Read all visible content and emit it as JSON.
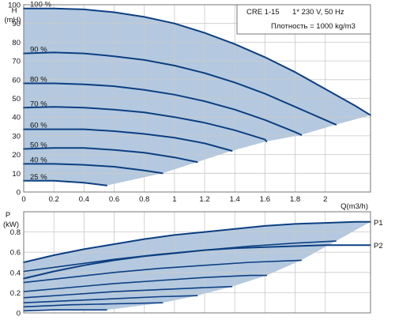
{
  "colors": {
    "curve": "#0c3f82",
    "area": "#b4c9df",
    "grid": "#c9c9c9"
  },
  "chart_data": [
    {
      "type": "line",
      "info": [
        "CRE 1-15",
        "1* 230 V, 50 Hz",
        "Плотность = 1000 kg/m3"
      ],
      "ylabel": [
        "H",
        "(mH)"
      ],
      "xlabel": "Q(m3/h)",
      "xlim": [
        0,
        2.3
      ],
      "ylim": [
        0,
        100
      ],
      "xticks": [
        "0",
        "0.2",
        "0.4",
        "0.6",
        "0.8",
        "1",
        "1.2",
        "1.4",
        "1.6",
        "1.8",
        "2"
      ],
      "yticks": [
        "0",
        "10",
        "20",
        "30",
        "40",
        "50",
        "60",
        "70",
        "80",
        "90",
        "100"
      ],
      "grid": true,
      "series": [
        {
          "name": "100 %",
          "x": [
            0,
            0.2,
            0.4,
            0.6,
            0.8,
            1.0,
            1.2,
            1.4,
            1.6,
            1.8,
            2.0,
            2.2,
            2.3
          ],
          "y": [
            98,
            98,
            97.5,
            96,
            93.5,
            90,
            85,
            79,
            72,
            64,
            55,
            46,
            41
          ]
        },
        {
          "name": "90 %",
          "x": [
            0,
            0.2,
            0.4,
            0.6,
            0.8,
            1.0,
            1.2,
            1.4,
            1.6,
            1.8,
            2.0,
            2.07
          ],
          "y": [
            74,
            74.5,
            74,
            72.5,
            70.5,
            67.5,
            63.5,
            58.5,
            52.5,
            45.5,
            38.5,
            36
          ]
        },
        {
          "name": "80 %",
          "x": [
            0,
            0.2,
            0.4,
            0.6,
            0.8,
            1.0,
            1.2,
            1.4,
            1.6,
            1.8,
            1.84
          ],
          "y": [
            58,
            58,
            57.5,
            56.5,
            54.5,
            52,
            48.5,
            44,
            38.5,
            32,
            30.5
          ]
        },
        {
          "name": "70 %",
          "x": [
            0,
            0.2,
            0.4,
            0.6,
            0.8,
            1.0,
            1.2,
            1.4,
            1.6,
            1.61
          ],
          "y": [
            45,
            45.5,
            45,
            44,
            42.5,
            40,
            37,
            33,
            28,
            27
          ]
        },
        {
          "name": "60 %",
          "x": [
            0,
            0.2,
            0.4,
            0.6,
            0.8,
            1.0,
            1.2,
            1.38
          ],
          "y": [
            33.5,
            33.5,
            33.5,
            32.5,
            31,
            29,
            26,
            22
          ]
        },
        {
          "name": "50 %",
          "x": [
            0,
            0.2,
            0.4,
            0.6,
            0.8,
            1.0,
            1.15
          ],
          "y": [
            23,
            23.5,
            23.5,
            22.5,
            21,
            18.5,
            16
          ]
        },
        {
          "name": "40 %",
          "x": [
            0,
            0.2,
            0.4,
            0.6,
            0.8,
            0.92
          ],
          "y": [
            15,
            15,
            14.5,
            13.5,
            11.5,
            10
          ]
        },
        {
          "name": "25 %",
          "x": [
            0,
            0.2,
            0.4,
            0.55
          ],
          "y": [
            6,
            6,
            5,
            3.5
          ]
        }
      ]
    },
    {
      "type": "line",
      "ylabel": [
        "P",
        "(kW)"
      ],
      "xlim": [
        0,
        2.3
      ],
      "ylim": [
        0,
        1
      ],
      "yticks": [
        "0",
        "0.2",
        "0.4",
        "0.6",
        "0.8"
      ],
      "grid": true,
      "series": [
        {
          "name": "P1",
          "x": [
            0,
            0.2,
            0.4,
            0.6,
            0.8,
            1.0,
            1.2,
            1.4,
            1.6,
            1.8,
            2.0,
            2.2,
            2.3
          ],
          "y": [
            0.5,
            0.57,
            0.63,
            0.68,
            0.73,
            0.77,
            0.8,
            0.83,
            0.86,
            0.88,
            0.89,
            0.9,
            0.9
          ]
        },
        {
          "name": "P2",
          "x": [
            0,
            0.2,
            0.4,
            0.6,
            0.8,
            1.0,
            1.2,
            1.4,
            1.6,
            1.8,
            2.0,
            2.2,
            2.3
          ],
          "y": [
            0.34,
            0.41,
            0.47,
            0.52,
            0.56,
            0.59,
            0.62,
            0.64,
            0.65,
            0.66,
            0.67,
            0.67,
            0.67
          ]
        },
        {
          "x": [
            0,
            0.3,
            0.6,
            0.9,
            1.2,
            1.5,
            1.8,
            2.07
          ],
          "y": [
            0.41,
            0.47,
            0.53,
            0.58,
            0.62,
            0.66,
            0.69,
            0.71
          ]
        },
        {
          "x": [
            0,
            0.3,
            0.6,
            0.9,
            1.2,
            1.5,
            1.84
          ],
          "y": [
            0.3,
            0.35,
            0.4,
            0.44,
            0.47,
            0.5,
            0.52
          ]
        },
        {
          "x": [
            0,
            0.3,
            0.6,
            0.9,
            1.2,
            1.5,
            1.61
          ],
          "y": [
            0.21,
            0.25,
            0.29,
            0.32,
            0.35,
            0.37,
            0.37
          ]
        },
        {
          "x": [
            0,
            0.3,
            0.6,
            0.9,
            1.2,
            1.38
          ],
          "y": [
            0.15,
            0.18,
            0.21,
            0.23,
            0.25,
            0.26
          ]
        },
        {
          "x": [
            0,
            0.3,
            0.6,
            0.9,
            1.15
          ],
          "y": [
            0.1,
            0.12,
            0.14,
            0.16,
            0.17
          ]
        },
        {
          "x": [
            0,
            0.3,
            0.6,
            0.92
          ],
          "y": [
            0.06,
            0.08,
            0.09,
            0.1
          ]
        },
        {
          "x": [
            0,
            0.2,
            0.4,
            0.55
          ],
          "y": [
            0.02,
            0.03,
            0.03,
            0.03
          ]
        }
      ]
    }
  ]
}
